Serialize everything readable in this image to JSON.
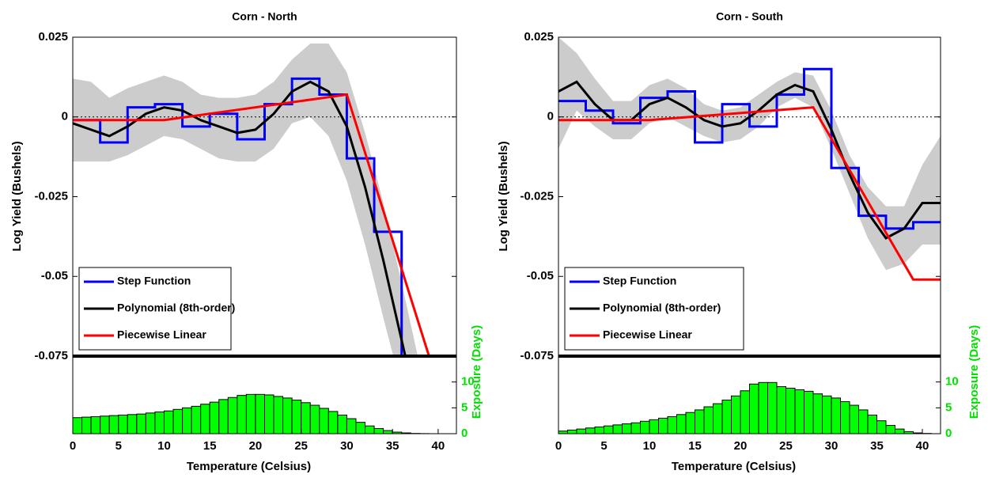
{
  "chart_data": [
    {
      "type": "line",
      "title": "Corn - North",
      "ylabel": "Log Yield (Bushels)",
      "xlabel": "Temperature (Celsius)",
      "xlim": [
        0,
        42
      ],
      "xticks": [
        0,
        5,
        10,
        15,
        20,
        25,
        30,
        35,
        40
      ],
      "ylim": [
        -0.075,
        0.025
      ],
      "yticks": [
        0.025,
        0,
        -0.025,
        -0.05,
        -0.075
      ],
      "legend": "lower left",
      "band": {
        "color": "#cccccc",
        "x": [
          0,
          2,
          4,
          6,
          8,
          10,
          12,
          14,
          16,
          18,
          20,
          22,
          24,
          26,
          28,
          30,
          32,
          34,
          36,
          38
        ],
        "upper": [
          0.012,
          0.011,
          0.006,
          0.009,
          0.011,
          0.013,
          0.011,
          0.007,
          0.006,
          0.006,
          0.007,
          0.011,
          0.018,
          0.023,
          0.023,
          0.014,
          -0.005,
          -0.027,
          -0.052,
          -0.078
        ],
        "lower": [
          -0.014,
          -0.014,
          -0.014,
          -0.012,
          -0.009,
          -0.006,
          -0.007,
          -0.01,
          -0.013,
          -0.014,
          -0.014,
          -0.01,
          -0.002,
          0.0,
          -0.006,
          -0.02,
          -0.04,
          -0.063,
          -0.085,
          -0.1
        ]
      },
      "series": [
        {
          "name": "Step Function",
          "color": "#0000ff",
          "bins": [
            0,
            3,
            6,
            9,
            12,
            15,
            18,
            21,
            24,
            27,
            30,
            33,
            36,
            39
          ],
          "values": [
            -0.001,
            -0.008,
            0.003,
            0.004,
            -0.003,
            0.001,
            -0.007,
            0.004,
            0.012,
            0.007,
            -0.013,
            -0.036,
            -0.09
          ]
        },
        {
          "name": "Polynomial (8th-order)",
          "color": "#000000",
          "x": [
            0,
            2,
            4,
            6,
            8,
            10,
            12,
            14,
            16,
            18,
            20,
            22,
            24,
            26,
            28,
            30,
            32,
            34,
            36,
            38
          ],
          "values": [
            -0.002,
            -0.004,
            -0.006,
            -0.003,
            0.001,
            0.003,
            0.002,
            -0.001,
            -0.003,
            -0.005,
            -0.004,
            0.001,
            0.008,
            0.011,
            0.008,
            -0.003,
            -0.022,
            -0.045,
            -0.07,
            -0.095
          ]
        },
        {
          "name": "Piecewise Linear",
          "color": "#ff0000",
          "x": [
            0,
            10,
            30,
            39
          ],
          "values": [
            -0.001,
            -0.001,
            0.007,
            -0.075
          ]
        }
      ],
      "exposure": {
        "type": "histogram",
        "ylabel": "Exposure (Days)",
        "color": "#00ff00",
        "ylim": [
          0,
          15
        ],
        "yticks": [
          0,
          5,
          10
        ],
        "bins": [
          0,
          1,
          2,
          3,
          4,
          5,
          6,
          7,
          8,
          9,
          10,
          11,
          12,
          13,
          14,
          15,
          16,
          17,
          18,
          19,
          20,
          21,
          22,
          23,
          24,
          25,
          26,
          27,
          28,
          29,
          30,
          31,
          32,
          33,
          34,
          35,
          36,
          37,
          38,
          39,
          40,
          41,
          42
        ],
        "values": [
          3.1,
          3.2,
          3.3,
          3.4,
          3.5,
          3.6,
          3.7,
          3.8,
          4.0,
          4.2,
          4.4,
          4.7,
          5.0,
          5.3,
          5.7,
          6.1,
          6.6,
          7.0,
          7.4,
          7.6,
          7.6,
          7.5,
          7.2,
          6.9,
          6.5,
          6.0,
          5.5,
          4.9,
          4.3,
          3.6,
          2.9,
          2.2,
          1.5,
          1.0,
          0.6,
          0.3,
          0.15,
          0.05,
          0.02,
          0,
          0,
          0
        ]
      }
    },
    {
      "type": "line",
      "title": "Corn - South",
      "ylabel": "Log Yield (Bushels)",
      "xlabel": "Temperature (Celsius)",
      "xlim": [
        0,
        42
      ],
      "xticks": [
        0,
        5,
        10,
        15,
        20,
        25,
        30,
        35,
        40
      ],
      "ylim": [
        -0.075,
        0.025
      ],
      "yticks": [
        0.025,
        0,
        -0.025,
        -0.05,
        -0.075
      ],
      "legend": "lower left",
      "band": {
        "color": "#cccccc",
        "x": [
          0,
          2,
          4,
          6,
          8,
          10,
          12,
          14,
          16,
          18,
          20,
          22,
          24,
          26,
          28,
          30,
          32,
          34,
          36,
          38,
          40,
          42
        ],
        "upper": [
          0.025,
          0.02,
          0.012,
          0.005,
          0.005,
          0.01,
          0.012,
          0.009,
          0.004,
          0.002,
          0.003,
          0.007,
          0.011,
          0.014,
          0.013,
          0.002,
          -0.012,
          -0.022,
          -0.028,
          -0.028,
          -0.015,
          -0.006
        ],
        "lower": [
          -0.01,
          0.002,
          -0.003,
          -0.007,
          -0.007,
          -0.002,
          0.0,
          -0.003,
          -0.006,
          -0.008,
          -0.007,
          -0.003,
          0.003,
          0.006,
          0.003,
          -0.01,
          -0.024,
          -0.038,
          -0.048,
          -0.046,
          -0.04,
          -0.04
        ]
      },
      "series": [
        {
          "name": "Step Function",
          "color": "#0000ff",
          "bins": [
            0,
            3,
            6,
            9,
            12,
            15,
            18,
            21,
            24,
            27,
            30,
            33,
            36,
            39,
            42
          ],
          "values": [
            0.005,
            0.002,
            -0.002,
            0.006,
            0.008,
            -0.008,
            0.004,
            -0.003,
            0.007,
            0.015,
            -0.016,
            -0.031,
            -0.035,
            -0.033
          ]
        },
        {
          "name": "Polynomial (8th-order)",
          "color": "#000000",
          "x": [
            0,
            2,
            4,
            6,
            8,
            10,
            12,
            14,
            16,
            18,
            20,
            22,
            24,
            26,
            28,
            30,
            32,
            34,
            36,
            38,
            40,
            42
          ],
          "values": [
            0.008,
            0.011,
            0.004,
            -0.001,
            -0.001,
            0.004,
            0.006,
            0.003,
            -0.001,
            -0.003,
            -0.002,
            0.002,
            0.007,
            0.01,
            0.008,
            -0.004,
            -0.018,
            -0.03,
            -0.038,
            -0.035,
            -0.027,
            -0.027
          ]
        },
        {
          "name": "Piecewise Linear",
          "color": "#ff0000",
          "x": [
            0,
            10,
            28,
            39,
            42
          ],
          "values": [
            -0.001,
            -0.001,
            0.003,
            -0.051,
            -0.051
          ]
        }
      ],
      "exposure": {
        "type": "histogram",
        "ylabel": "Exposure (Days)",
        "color": "#00ff00",
        "ylim": [
          0,
          15
        ],
        "yticks": [
          0,
          5,
          10
        ],
        "bins": [
          0,
          1,
          2,
          3,
          4,
          5,
          6,
          7,
          8,
          9,
          10,
          11,
          12,
          13,
          14,
          15,
          16,
          17,
          18,
          19,
          20,
          21,
          22,
          23,
          24,
          25,
          26,
          27,
          28,
          29,
          30,
          31,
          32,
          33,
          34,
          35,
          36,
          37,
          38,
          39,
          40,
          41,
          42
        ],
        "values": [
          0.5,
          0.7,
          0.9,
          1.1,
          1.3,
          1.5,
          1.7,
          1.9,
          2.1,
          2.4,
          2.7,
          3.0,
          3.3,
          3.7,
          4.1,
          4.6,
          5.2,
          5.8,
          6.5,
          7.3,
          8.3,
          9.6,
          9.9,
          9.9,
          9.1,
          8.8,
          8.5,
          8.2,
          7.7,
          7.3,
          6.9,
          6.2,
          5.5,
          4.6,
          3.6,
          2.5,
          1.6,
          0.9,
          0.4,
          0.15,
          0.05,
          0
        ]
      }
    }
  ]
}
